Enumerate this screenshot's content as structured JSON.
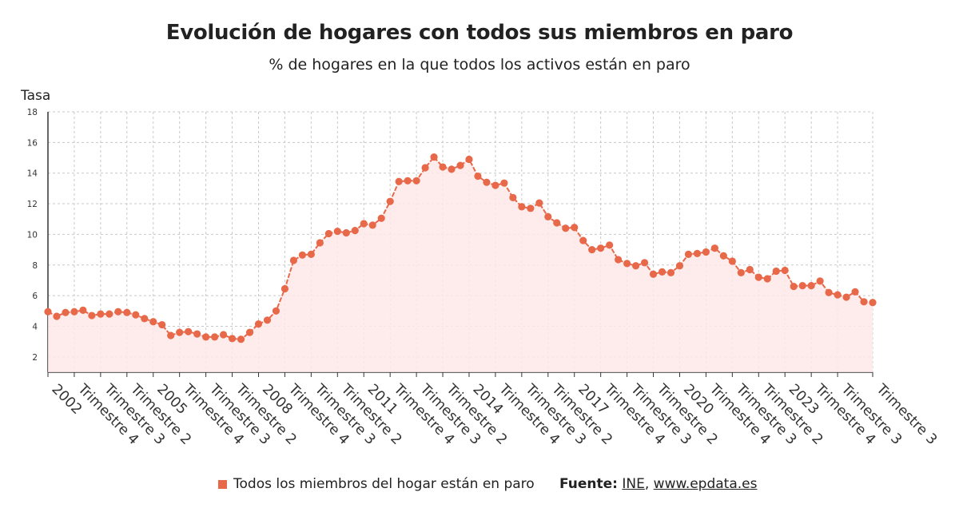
{
  "header": {
    "title": "Evolución de hogares con todos sus miembros en paro",
    "subtitle": "% de hogares en la que todos los activos están en paro"
  },
  "colors": {
    "series": "#e8694a",
    "fill": "#fde9e8",
    "grid": "#c8c8c8",
    "axis": "#333333"
  },
  "chart_data": {
    "type": "line",
    "title": "Evolución de hogares con todos sus miembros en paro",
    "subtitle": "% de hogares en la que todos los activos están en paro",
    "ylabel": "Tasa",
    "xlabel": "",
    "ylim": [
      1,
      18
    ],
    "yticks": [
      2,
      4,
      6,
      8,
      10,
      12,
      14,
      16,
      18
    ],
    "grid": true,
    "legend_position": "bottom",
    "x_ticks": [
      {
        "index": 0,
        "label": "2002"
      },
      {
        "index": 3,
        "label": "Trimestre 4"
      },
      {
        "index": 6,
        "label": "Trimestre 3"
      },
      {
        "index": 9,
        "label": "Trimestre 2"
      },
      {
        "index": 12,
        "label": "2005"
      },
      {
        "index": 15,
        "label": "Trimestre 4"
      },
      {
        "index": 18,
        "label": "Trimestre 3"
      },
      {
        "index": 21,
        "label": "Trimestre 2"
      },
      {
        "index": 24,
        "label": "2008"
      },
      {
        "index": 27,
        "label": "Trimestre 4"
      },
      {
        "index": 30,
        "label": "Trimestre 3"
      },
      {
        "index": 33,
        "label": "Trimestre 2"
      },
      {
        "index": 36,
        "label": "2011"
      },
      {
        "index": 39,
        "label": "Trimestre 4"
      },
      {
        "index": 42,
        "label": "Trimestre 3"
      },
      {
        "index": 45,
        "label": "Trimestre 2"
      },
      {
        "index": 48,
        "label": "2014"
      },
      {
        "index": 51,
        "label": "Trimestre 4"
      },
      {
        "index": 54,
        "label": "Trimestre 3"
      },
      {
        "index": 57,
        "label": "Trimestre 2"
      },
      {
        "index": 60,
        "label": "2017"
      },
      {
        "index": 63,
        "label": "Trimestre 4"
      },
      {
        "index": 66,
        "label": "Trimestre 3"
      },
      {
        "index": 69,
        "label": "Trimestre 2"
      },
      {
        "index": 72,
        "label": "2020"
      },
      {
        "index": 75,
        "label": "Trimestre 4"
      },
      {
        "index": 78,
        "label": "Trimestre 3"
      },
      {
        "index": 81,
        "label": "Trimestre 2"
      },
      {
        "index": 84,
        "label": "2023"
      },
      {
        "index": 87,
        "label": "Trimestre 4"
      },
      {
        "index": 90,
        "label": "Trimestre 3"
      },
      {
        "index": 94,
        "label": "Trimestre 3"
      }
    ],
    "series": [
      {
        "name": "Todos los miembros del hogar están en paro",
        "values": [
          4.95,
          4.65,
          4.9,
          4.95,
          5.05,
          4.7,
          4.8,
          4.8,
          4.95,
          4.9,
          4.75,
          4.5,
          4.3,
          4.1,
          3.4,
          3.6,
          3.65,
          3.5,
          3.3,
          3.3,
          3.45,
          3.2,
          3.15,
          3.6,
          4.15,
          4.4,
          5.0,
          6.45,
          8.3,
          8.65,
          8.7,
          9.45,
          10.05,
          10.2,
          10.1,
          10.25,
          10.7,
          10.6,
          11.05,
          12.15,
          13.45,
          13.5,
          13.5,
          14.35,
          15.05,
          14.4,
          14.25,
          14.5,
          14.9,
          13.8,
          13.4,
          13.2,
          13.35,
          12.4,
          11.8,
          11.7,
          12.05,
          11.15,
          10.75,
          10.4,
          10.45,
          9.6,
          9.0,
          9.1,
          9.3,
          8.35,
          8.1,
          7.95,
          8.15,
          7.4,
          7.55,
          7.5,
          7.95,
          8.7,
          8.75,
          8.85,
          9.1,
          8.6,
          8.25,
          7.5,
          7.7,
          7.2,
          7.1,
          7.6,
          7.65,
          6.6,
          6.65,
          6.65,
          6.95,
          6.2,
          6.05,
          5.9,
          6.25,
          5.6,
          5.55
        ]
      }
    ]
  },
  "footer": {
    "legend_label": "Todos los miembros del hogar están en paro",
    "source_label": "Fuente:",
    "source_ine": "INE",
    "source_sep": ",",
    "source_site": "www.epdata.es"
  }
}
